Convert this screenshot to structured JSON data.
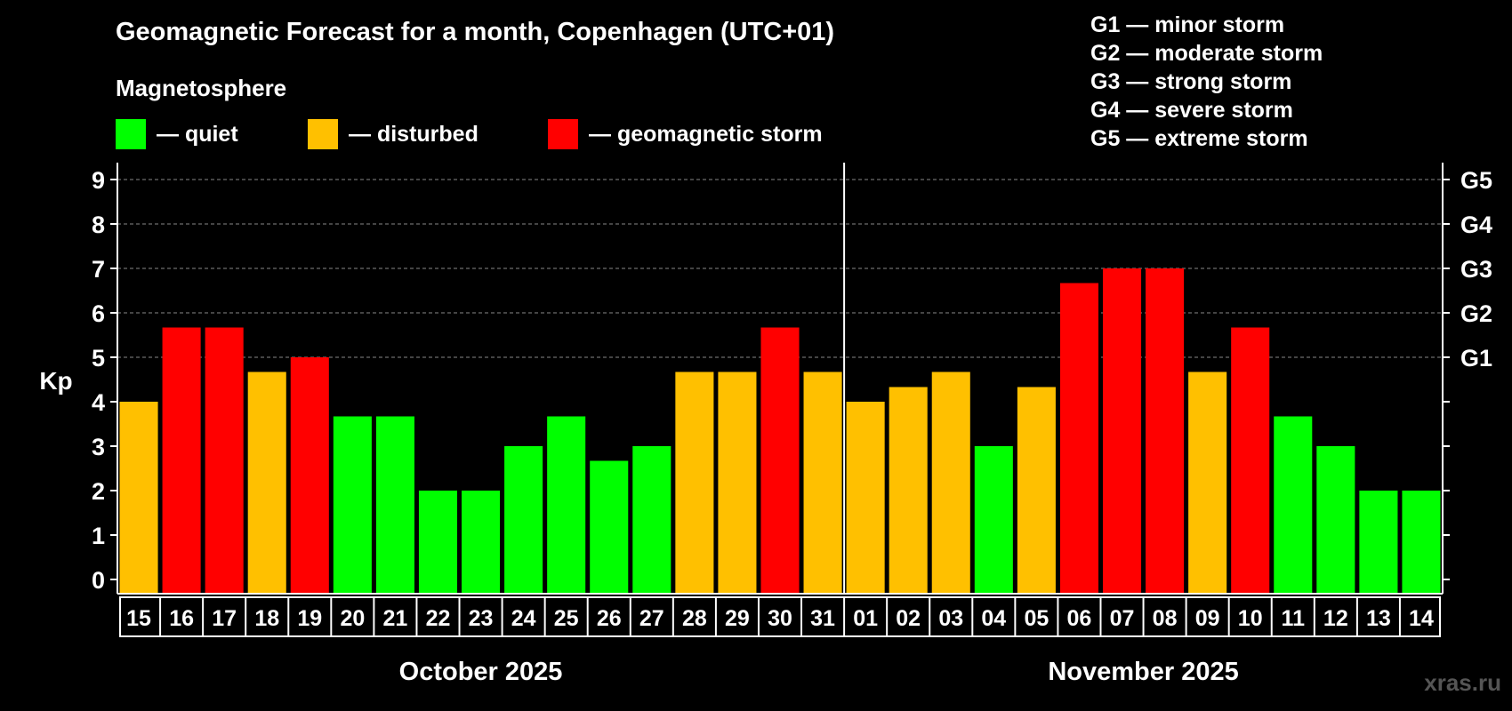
{
  "title": "Geomagnetic Forecast for a month, Copenhagen (UTC+01)",
  "legend": {
    "heading": "Magnetosphere",
    "items": [
      {
        "label": "— quiet",
        "color": "#00ff00"
      },
      {
        "label": "— disturbed",
        "color": "#ffc000"
      },
      {
        "label": "— geomagnetic storm",
        "color": "#ff0000"
      }
    ]
  },
  "g_scale": [
    "G1 — minor storm",
    "G2 — moderate storm",
    "G3 — strong storm",
    "G4 — severe storm",
    "G5 — extreme storm"
  ],
  "watermark": "xras.ru",
  "chart_data": {
    "type": "bar",
    "ylabel": "Kp",
    "ylim": [
      0,
      9
    ],
    "yticks": [
      "0",
      "1",
      "2",
      "3",
      "4",
      "5",
      "6",
      "7",
      "8",
      "9"
    ],
    "right_ticks": [
      {
        "value": 5,
        "label": "G1"
      },
      {
        "value": 6,
        "label": "G2"
      },
      {
        "value": 7,
        "label": "G3"
      },
      {
        "value": 8,
        "label": "G4"
      },
      {
        "value": 9,
        "label": "G5"
      }
    ],
    "grid": "dashed horizontal at Kp 5–9",
    "months": [
      {
        "label": "October 2025",
        "start": 0,
        "count": 17
      },
      {
        "label": "November 2025",
        "start": 17,
        "count": 14
      }
    ],
    "categories": [
      "15",
      "16",
      "17",
      "18",
      "19",
      "20",
      "21",
      "22",
      "23",
      "24",
      "25",
      "26",
      "27",
      "28",
      "29",
      "30",
      "31",
      "01",
      "02",
      "03",
      "04",
      "05",
      "06",
      "07",
      "08",
      "09",
      "10",
      "11",
      "12",
      "13",
      "14"
    ],
    "values": [
      4.0,
      5.67,
      5.67,
      4.67,
      5.0,
      3.67,
      3.67,
      2.0,
      2.0,
      3.0,
      3.67,
      2.67,
      3.0,
      4.67,
      4.67,
      5.67,
      4.67,
      4.0,
      4.33,
      4.67,
      3.0,
      4.33,
      6.67,
      7.0,
      7.0,
      4.67,
      5.67,
      3.67,
      3.0,
      2.0,
      2.0
    ],
    "levels": [
      "disturbed",
      "storm",
      "storm",
      "disturbed",
      "storm",
      "quiet",
      "quiet",
      "quiet",
      "quiet",
      "quiet",
      "quiet",
      "quiet",
      "quiet",
      "disturbed",
      "disturbed",
      "storm",
      "disturbed",
      "disturbed",
      "disturbed",
      "disturbed",
      "quiet",
      "disturbed",
      "storm",
      "storm",
      "storm",
      "disturbed",
      "storm",
      "quiet",
      "quiet",
      "quiet",
      "quiet"
    ],
    "level_colors": {
      "quiet": "#00ff00",
      "disturbed": "#ffc000",
      "storm": "#ff0000"
    }
  }
}
